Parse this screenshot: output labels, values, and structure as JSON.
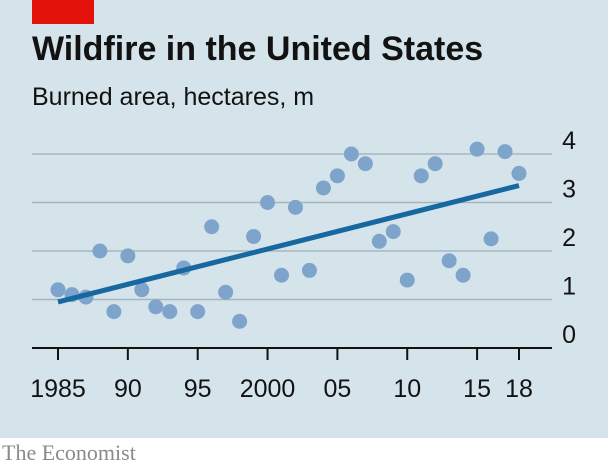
{
  "header": {
    "title": "Wildfire in the United States",
    "subtitle": "Burned area, hectares, m"
  },
  "footer": {
    "source": "The Economist"
  },
  "colors": {
    "accent": "#e3120b",
    "background": "#d5e4eb",
    "dots": "#7fa4cc",
    "trend": "#1868a0",
    "grid": "#a5b6bf"
  },
  "chart_data": {
    "type": "scatter",
    "title": "Wildfire in the United States",
    "subtitle": "Burned area, hectares, m",
    "xlim": [
      1985,
      2018
    ],
    "ylim": [
      0,
      4
    ],
    "x_ticks": [
      1985,
      1990,
      1995,
      2000,
      2005,
      2010,
      2015,
      2018
    ],
    "x_tick_labels": [
      "1985",
      "90",
      "95",
      "2000",
      "05",
      "10",
      "15",
      "18"
    ],
    "y_ticks": [
      0,
      1,
      2,
      3,
      4
    ],
    "y_tick_labels": [
      "0",
      "1",
      "2",
      "3",
      "4"
    ],
    "grid": true,
    "points": [
      {
        "x": 1985,
        "y": 1.2
      },
      {
        "x": 1986,
        "y": 1.1
      },
      {
        "x": 1987,
        "y": 1.05
      },
      {
        "x": 1988,
        "y": 2.0
      },
      {
        "x": 1989,
        "y": 0.75
      },
      {
        "x": 1990,
        "y": 1.9
      },
      {
        "x": 1991,
        "y": 1.2
      },
      {
        "x": 1992,
        "y": 0.85
      },
      {
        "x": 1993,
        "y": 0.75
      },
      {
        "x": 1994,
        "y": 1.65
      },
      {
        "x": 1995,
        "y": 0.75
      },
      {
        "x": 1996,
        "y": 2.5
      },
      {
        "x": 1997,
        "y": 1.15
      },
      {
        "x": 1998,
        "y": 0.55
      },
      {
        "x": 1999,
        "y": 2.3
      },
      {
        "x": 2000,
        "y": 3.0
      },
      {
        "x": 2001,
        "y": 1.5
      },
      {
        "x": 2002,
        "y": 2.9
      },
      {
        "x": 2003,
        "y": 1.6
      },
      {
        "x": 2004,
        "y": 3.3
      },
      {
        "x": 2005,
        "y": 3.55
      },
      {
        "x": 2006,
        "y": 4.0
      },
      {
        "x": 2007,
        "y": 3.8
      },
      {
        "x": 2008,
        "y": 2.2
      },
      {
        "x": 2009,
        "y": 2.4
      },
      {
        "x": 2010,
        "y": 1.4
      },
      {
        "x": 2011,
        "y": 3.55
      },
      {
        "x": 2012,
        "y": 3.8
      },
      {
        "x": 2013,
        "y": 1.8
      },
      {
        "x": 2014,
        "y": 1.5
      },
      {
        "x": 2015,
        "y": 4.1
      },
      {
        "x": 2016,
        "y": 2.25
      },
      {
        "x": 2017,
        "y": 4.05
      },
      {
        "x": 2018,
        "y": 3.6
      }
    ],
    "trend": [
      {
        "x": 1985,
        "y": 0.95
      },
      {
        "x": 2018,
        "y": 3.35
      }
    ]
  }
}
